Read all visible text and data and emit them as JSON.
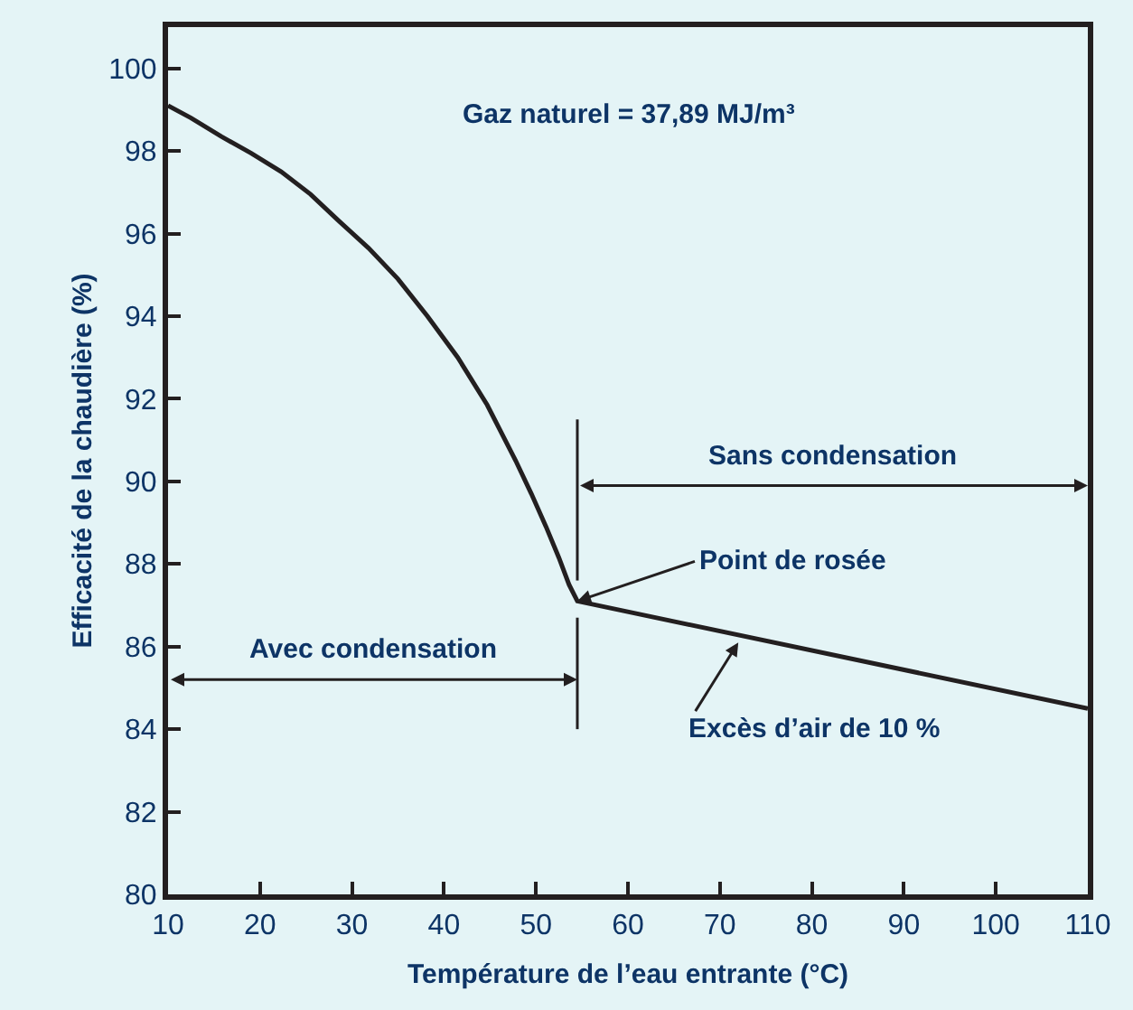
{
  "chart_data": {
    "type": "line",
    "xlabel": "Température de l’eau entrante (°C)",
    "ylabel": "Efficacité de la chaudière (%)",
    "x": [
      10,
      12.5,
      15.8,
      19,
      22.3,
      25.5,
      28.6,
      31.8,
      35,
      38.2,
      41.5,
      44.7,
      47.8,
      49.5,
      51.1,
      52.5,
      53.6,
      54.5,
      110
    ],
    "series": [
      {
        "color": "#231f20",
        "values": [
          99.1,
          98.8,
          98.35,
          97.95,
          97.5,
          96.95,
          96.3,
          95.65,
          94.9,
          94.0,
          93.0,
          91.85,
          90.5,
          89.7,
          88.9,
          88.15,
          87.5,
          87.1,
          84.5
        ]
      }
    ],
    "xlim": [
      10,
      110
    ],
    "xticks": [
      10,
      20,
      30,
      40,
      50,
      60,
      70,
      80,
      90,
      100,
      110
    ],
    "ylim": [
      80,
      101
    ],
    "yticks": [
      80,
      82,
      84,
      86,
      88,
      90,
      92,
      94,
      96,
      98,
      100
    ],
    "grid": false,
    "marker": "none",
    "line_style": "solid",
    "ref_lines": [
      {
        "axis": "x",
        "value": 54.5,
        "label": null
      }
    ],
    "annotations": [
      "Gaz naturel = 37,89 MJ/m³",
      "Avec condensation",
      "Sans condensation",
      {
        "text": "Point de rosée",
        "x": 54.5,
        "y": 87.1
      },
      {
        "text": "Excès d’air de 10 %",
        "x": 72,
        "y": 86.1
      }
    ]
  }
}
